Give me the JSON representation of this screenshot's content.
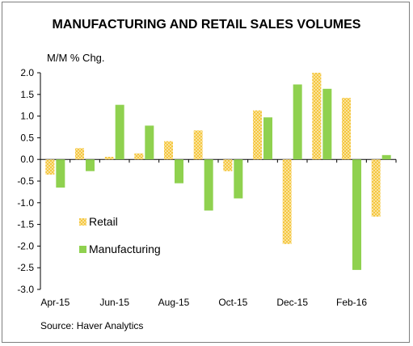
{
  "chart_data": {
    "type": "bar",
    "title": "MANUFACTURING AND RETAIL SALES VOLUMES",
    "ylabel": "M/M % Chg.",
    "xlabel": "",
    "source": "Source: Haver Analytics",
    "categories": [
      "Apr-15",
      "May-15",
      "Jun-15",
      "Jul-15",
      "Aug-15",
      "Sep-15",
      "Oct-15",
      "Nov-15",
      "Dec-15",
      "Jan-16",
      "Feb-16",
      "Mar-16"
    ],
    "x_tick_labels": [
      "Apr-15",
      "Jun-15",
      "Aug-15",
      "Oct-15",
      "Dec-15",
      "Feb-16"
    ],
    "y_tick_labels": [
      "2.0",
      "1.5",
      "1.0",
      "0.5",
      "0.0",
      "-0.5",
      "-1.0",
      "-1.5",
      "-2.0",
      "-2.5",
      "-3.0"
    ],
    "ylim": [
      -3.0,
      2.0
    ],
    "ystep": 0.5,
    "grid": false,
    "legend_placement": "lower-left",
    "series": [
      {
        "name": "Retail",
        "color": "#f5c242",
        "pattern": "dotted",
        "values": [
          -0.35,
          0.26,
          0.06,
          0.14,
          0.42,
          0.67,
          -0.27,
          1.13,
          -1.95,
          2.0,
          1.42,
          -1.32
        ]
      },
      {
        "name": "Manufacturing",
        "color": "#8fd14f",
        "pattern": "solid",
        "values": [
          -0.65,
          -0.27,
          1.26,
          0.78,
          -0.55,
          -1.18,
          -0.9,
          0.97,
          1.73,
          1.63,
          -2.55,
          0.1
        ]
      }
    ]
  }
}
